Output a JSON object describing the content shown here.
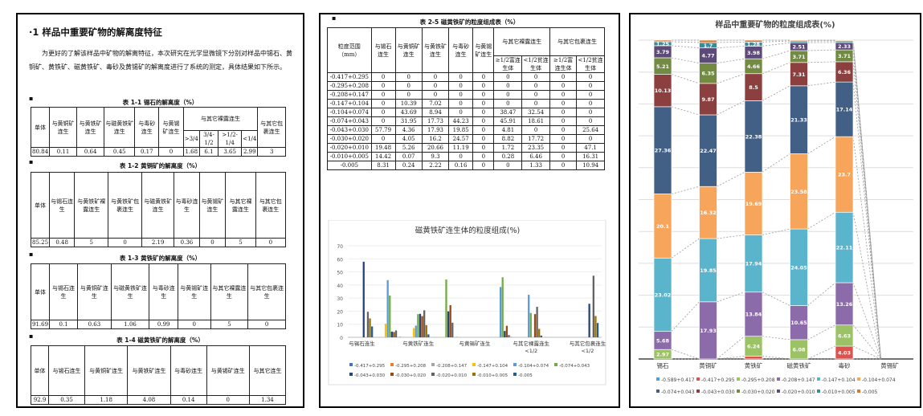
{
  "left": {
    "heading": "·1  样品中重要矿物的解离度特征",
    "paragraph": "为更好的了解该样品中矿物的解离特征，本次研究在光学显微镜下分别对样品中锡石、黄铜矿、黄铁矿、磁黄铁矿、毒砂及黄锡矿的解离度进行了系统的测定，具体结果如下所示。",
    "tables": [
      {
        "caption": "表 1-1  锡石的解离度（%）",
        "columns": [
          {
            "h": "单体"
          },
          {
            "h": "与黄铜矿连生"
          },
          {
            "h": "与黄铁矿连生"
          },
          {
            "h": "与磁黄铁矿连生"
          },
          {
            "h": "与毒砂连生"
          },
          {
            "h": "与黄锡矿连生"
          },
          {
            "h": "与其它裸露连生",
            "sub": [
              ">3/4",
              "3/4-1/2",
              ">1/2-1/4",
              "<1/4"
            ]
          },
          {
            "h": "与其它包裹连生"
          }
        ],
        "rows": [
          [
            "80.84",
            "0.11",
            "0.64",
            "0.45",
            "0.17",
            "0",
            "1.68",
            "6.1",
            "3.65",
            "2.99",
            "3"
          ]
        ]
      },
      {
        "caption": "表 1-2  黄铜矿的解离度（%）",
        "columns": [
          {
            "h": "单体"
          },
          {
            "h": "与锡石连生"
          },
          {
            "h": "与黄铁矿裸露连生"
          },
          {
            "h": "与黄铁矿包裹连生"
          },
          {
            "h": "与磁黄铁矿连生"
          },
          {
            "h": "与毒砂连生"
          },
          {
            "h": "与黄锡矿连生"
          },
          {
            "h": "与其它裸露连生"
          },
          {
            "h": "与其它包裹连生"
          }
        ],
        "rows": [
          [
            "85.25",
            "0.48",
            "5",
            "0",
            "2.19",
            "0.36",
            "0",
            "5",
            "0"
          ]
        ]
      },
      {
        "caption": "表 1-3  黄铁矿的解离度（%）",
        "columns": [
          {
            "h": "单体"
          },
          {
            "h": "与锡石连生"
          },
          {
            "h": "与黄铜矿连生"
          },
          {
            "h": "与磁黄铁矿连生"
          },
          {
            "h": "与毒砂连生"
          },
          {
            "h": "与黄锡矿连生"
          },
          {
            "h": "与其它裸露连生"
          },
          {
            "h": "与其它包裹连生"
          }
        ],
        "rows": [
          [
            "91.69",
            "0.1",
            "0.63",
            "1.06",
            "0.99",
            "0",
            "5",
            "0"
          ]
        ]
      },
      {
        "caption": "表 1-4  磁黄铁矿的解离度（%）",
        "columns": [
          {
            "h": "单体"
          },
          {
            "h": "与锡石连生"
          },
          {
            "h": "与黄铜矿连生"
          },
          {
            "h": "与黄铁矿连生"
          },
          {
            "h": "与毒砂连生"
          },
          {
            "h": "与黄锡矿连生"
          },
          {
            "h": "与其它连生"
          }
        ],
        "rows": [
          [
            "92.9",
            "0.35",
            "1.18",
            "4.08",
            "0.14",
            "0",
            "1.34"
          ]
        ]
      }
    ]
  },
  "middle": {
    "table": {
      "caption": "表 2-5  磁黄铁矿的粒度组成表（%）",
      "columns": [
        {
          "h": "粒度范围（mm）"
        },
        {
          "h": "与锡石连生"
        },
        {
          "h": "与黄铜矿连生"
        },
        {
          "h": "与黄铁矿连生"
        },
        {
          "h": "与毒砂连生"
        },
        {
          "h": "与黄锡矿连生"
        },
        {
          "h": "与其它裸露连生",
          "sub": [
            "≥1/2富连生体",
            "<1/2贫连生体"
          ]
        },
        {
          "h": "与其它包裹连生",
          "sub": [
            "≥1/2富连生体",
            "<1/2贫连生体"
          ]
        }
      ],
      "rows": [
        [
          "-0.417+0.295",
          "0",
          "0",
          "0",
          "0",
          "0",
          "0",
          "0",
          "0",
          "0"
        ],
        [
          "-0.295+0.208",
          "0",
          "0",
          "0",
          "0",
          "0",
          "0",
          "0",
          "0",
          "0"
        ],
        [
          "-0.208+0.147",
          "0",
          "0",
          "0",
          "0",
          "0",
          "0",
          "0",
          "0",
          "0"
        ],
        [
          "-0.147+0.104",
          "0",
          "10.39",
          "7.02",
          "0",
          "0",
          "0",
          "0",
          "0",
          "0"
        ],
        [
          "-0.104+0.074",
          "0",
          "43.69",
          "8.94",
          "0",
          "0",
          "38.47",
          "32.54",
          "0",
          "0"
        ],
        [
          "-0.074+0.043",
          "0",
          "31.95",
          "17.73",
          "44.23",
          "0",
          "45.91",
          "18.61",
          "0",
          "0"
        ],
        [
          "-0.043+0.030",
          "57.79",
          "4.36",
          "17.93",
          "19.85",
          "0",
          "4.81",
          "0",
          "0",
          "25.64"
        ],
        [
          "-0.030+0.020",
          "0",
          "4.05",
          "16.2",
          "24.57",
          "0",
          "8.82",
          "17.72",
          "0",
          "0"
        ],
        [
          "-0.020+0.010",
          "19.48",
          "5.26",
          "20.66",
          "11.19",
          "0",
          "1.72",
          "23.35",
          "0",
          "47.1"
        ],
        [
          "-0.010+0.005",
          "14.42",
          "0.07",
          "9.3",
          "0",
          "0",
          "0.28",
          "6.46",
          "0",
          "16.31"
        ],
        [
          "-0.005",
          "8.31",
          "0.24",
          "2.22",
          "0.16",
          "0",
          "0",
          "1.33",
          "0",
          "10.94"
        ]
      ]
    }
  },
  "chart_data": [
    {
      "type": "bar",
      "title": "磁黄铁矿连生体的粒度组成(%)",
      "ylim": [
        0,
        70
      ],
      "yticks": [
        0,
        10,
        20,
        30,
        40,
        50,
        60,
        70
      ],
      "grid": true,
      "legend": "bottom",
      "categories": [
        "与锡石连生",
        "与黄铜矿连生",
        "与黄铁矿连生",
        "与毒砂连生",
        "与黄锡矿连生",
        "与其它裸露连生≥1/2",
        "与其它裸露连生<1/2",
        "与其它包裹连生≥1/2",
        "与其它包裹连生<1/2"
      ],
      "category_labels_shown": [
        "与锡石连生",
        "",
        "与黄铁矿连生",
        "",
        "与黄锡矿连生",
        "",
        "与其它裸露连生<1/2",
        "",
        "与其它包裹连生<1/2"
      ],
      "series": [
        {
          "name": "-0.417+0.295",
          "color": "#4472C4",
          "values": [
            0,
            0,
            0,
            0,
            0,
            0,
            0,
            0,
            0
          ]
        },
        {
          "name": "-0.295+0.208",
          "color": "#ED7D31",
          "values": [
            0,
            0,
            0,
            0,
            0,
            0,
            0,
            0,
            0
          ]
        },
        {
          "name": "-0.208+0.147",
          "color": "#A5A5A5",
          "values": [
            0,
            0,
            0,
            0,
            0,
            0,
            0,
            0,
            0
          ]
        },
        {
          "name": "-0.147+0.104",
          "color": "#FFC000",
          "values": [
            0,
            10.39,
            7.02,
            0,
            0,
            0,
            0,
            0,
            0
          ]
        },
        {
          "name": "-0.104+0.074",
          "color": "#5B9BD5",
          "values": [
            0,
            43.69,
            8.94,
            0,
            0,
            38.47,
            32.54,
            0,
            0
          ]
        },
        {
          "name": "-0.074+0.043",
          "color": "#70AD47",
          "values": [
            0,
            31.95,
            17.73,
            44.23,
            0,
            45.91,
            18.61,
            0,
            0
          ]
        },
        {
          "name": "-0.043+0.030",
          "color": "#264478",
          "values": [
            57.79,
            4.36,
            17.93,
            19.85,
            0,
            4.81,
            0,
            0,
            25.64
          ]
        },
        {
          "name": "-0.030+0.020",
          "color": "#9E480E",
          "values": [
            0,
            4.05,
            16.2,
            24.57,
            0,
            8.82,
            17.72,
            0,
            0
          ]
        },
        {
          "name": "-0.020+0.010",
          "color": "#636363",
          "values": [
            19.48,
            5.26,
            20.66,
            11.19,
            0,
            1.72,
            23.35,
            0,
            47.1
          ]
        },
        {
          "name": "-0.010+0.005",
          "color": "#997300",
          "values": [
            14.42,
            0.07,
            9.3,
            0,
            0,
            0.28,
            6.46,
            0,
            16.31
          ]
        },
        {
          "name": "-0.005",
          "color": "#255E91",
          "values": [
            8.31,
            0.24,
            2.22,
            0.16,
            0,
            0,
            1.33,
            0,
            10.94
          ]
        }
      ]
    },
    {
      "type": "bar",
      "stacked": "percent",
      "title": "样品中重要矿物的粒度组成表(%)",
      "ylim": [
        0,
        100
      ],
      "grid": true,
      "legend": "bottom",
      "categories": [
        "锡石",
        "黄铜矿",
        "黄铁矿",
        "磁黄铁矿",
        "毒砂",
        "黄锡矿"
      ],
      "series": [
        {
          "name": "-0.589+0.417",
          "color": "#5B9BD5",
          "values": [
            0,
            0,
            0,
            0,
            0,
            0
          ]
        },
        {
          "name": "-0.417+0.295",
          "color": "#D9534F",
          "values": [
            0,
            0,
            0.9,
            0,
            4.03,
            0
          ]
        },
        {
          "name": "-0.295+0.208",
          "color": "#9BC365",
          "values": [
            2.97,
            0,
            6.24,
            6.08,
            6.63,
            0
          ]
        },
        {
          "name": "-0.208+0.147",
          "color": "#8C6BAA",
          "values": [
            5.68,
            17.93,
            13.84,
            10.65,
            13.26,
            0
          ]
        },
        {
          "name": "-0.147+0.104",
          "color": "#5AB4CC",
          "values": [
            23.02,
            19.85,
            17.94,
            24.05,
            22.11,
            0
          ]
        },
        {
          "name": "-0.104+0.074",
          "color": "#F6A55B",
          "values": [
            20.1,
            16.32,
            19.69,
            23.58,
            23.7,
            0
          ]
        },
        {
          "name": "-0.074+0.043",
          "color": "#425F86",
          "values": [
            27.36,
            22.47,
            22.38,
            21.33,
            17.14,
            0
          ]
        },
        {
          "name": "-0.043+0.030",
          "color": "#8B3F3F",
          "values": [
            10.13,
            9.87,
            8.5,
            7.31,
            6.36,
            0
          ]
        },
        {
          "name": "-0.030+0.020",
          "color": "#728A42",
          "values": [
            5.21,
            6.35,
            4.66,
            3.71,
            3.71,
            0
          ]
        },
        {
          "name": "-0.020+0.010",
          "color": "#5D4A78",
          "values": [
            3.79,
            4.77,
            3.98,
            2.51,
            2.33,
            0
          ]
        },
        {
          "name": "-0.010+0.005",
          "color": "#3A8A98",
          "values": [
            1.25,
            1.7,
            1.28,
            0.5,
            0.5,
            0
          ]
        },
        {
          "name": "-0.005",
          "color": "#D9772E",
          "values": [
            0.49,
            0.74,
            0.59,
            0.28,
            0.23,
            0
          ]
        }
      ]
    }
  ]
}
